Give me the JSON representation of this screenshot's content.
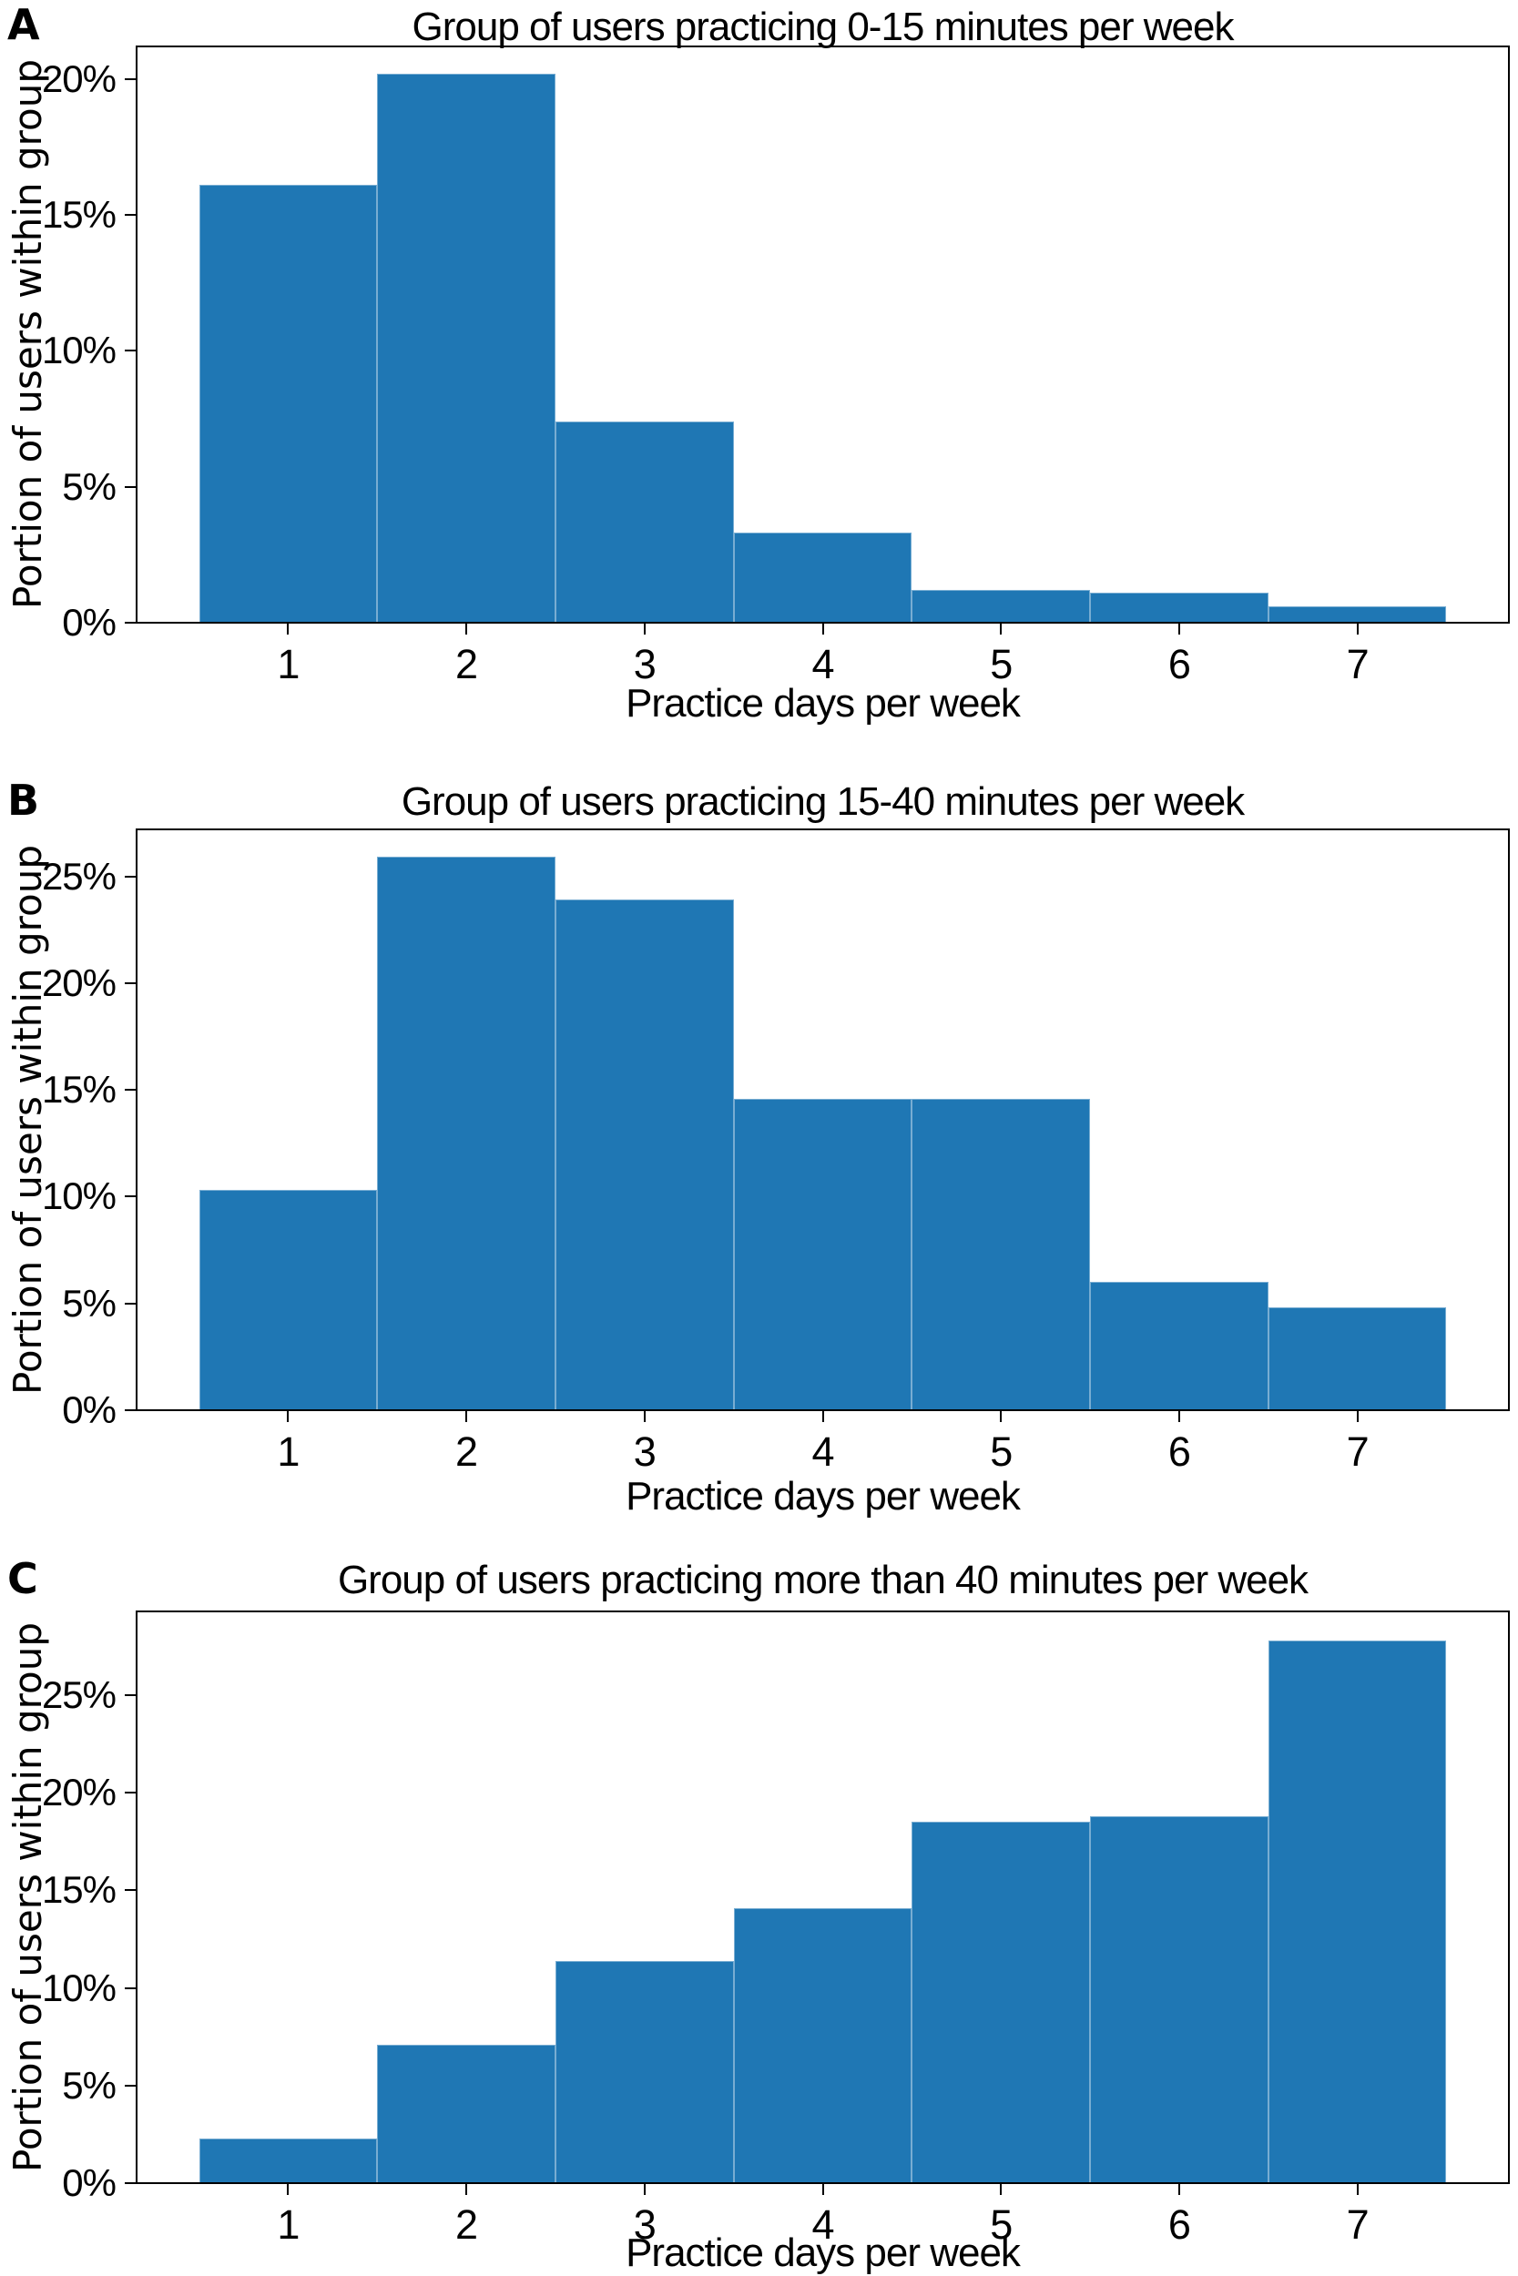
{
  "figure": {
    "background": "#ffffff",
    "bar_color": "#1f77b4",
    "axis_color": "#000000",
    "shared_ylabel": "Portion of users within group",
    "shared_xlabel": "Practice days per week"
  },
  "chart_data": [
    {
      "type": "bar",
      "panel_letter": "A",
      "title": "Group of users practicing 0-15 minutes per week",
      "xlabel": "Practice days per week",
      "ylabel": "Portion of users within group",
      "categories": [
        1,
        2,
        3,
        4,
        5,
        6,
        7
      ],
      "xtick_labels": [
        "1",
        "2",
        "3",
        "4",
        "5",
        "6",
        "7"
      ],
      "values": [
        16.1,
        20.2,
        7.4,
        3.3,
        1.2,
        1.1,
        0.6
      ],
      "unit": "%",
      "bin_width": 1,
      "xlim": [
        0.15,
        7.85
      ],
      "ylim": [
        0,
        21.2
      ],
      "yticks": [
        0,
        5,
        10,
        15,
        20
      ],
      "ytick_labels": [
        "0%",
        "5%",
        "10%",
        "15%",
        "20%"
      ],
      "grid": false,
      "legend": false
    },
    {
      "type": "bar",
      "panel_letter": "B",
      "title": "Group of users practicing 15-40 minutes per week",
      "xlabel": "Practice days per week",
      "ylabel": "Portion of users within group",
      "categories": [
        1,
        2,
        3,
        4,
        5,
        6,
        7
      ],
      "xtick_labels": [
        "1",
        "2",
        "3",
        "4",
        "5",
        "6",
        "7"
      ],
      "values": [
        10.3,
        25.9,
        23.9,
        14.6,
        14.6,
        6.0,
        4.8
      ],
      "unit": "%",
      "bin_width": 1,
      "xlim": [
        0.15,
        7.85
      ],
      "ylim": [
        0,
        27.2
      ],
      "yticks": [
        0,
        5,
        10,
        15,
        20,
        25
      ],
      "ytick_labels": [
        "0%",
        "5%",
        "10%",
        "15%",
        "20%",
        "25%"
      ],
      "grid": false,
      "legend": false
    },
    {
      "type": "bar",
      "panel_letter": "C",
      "title": "Group of users practicing more than 40 minutes per week",
      "xlabel": "Practice days per week",
      "ylabel": "Portion of users within group",
      "categories": [
        1,
        2,
        3,
        4,
        5,
        6,
        7
      ],
      "xtick_labels": [
        "1",
        "2",
        "3",
        "4",
        "5",
        "6",
        "7"
      ],
      "values": [
        2.3,
        7.1,
        11.4,
        14.1,
        18.5,
        18.8,
        27.8
      ],
      "unit": "%",
      "bin_width": 1,
      "xlim": [
        0.15,
        7.85
      ],
      "ylim": [
        0,
        29.3
      ],
      "yticks": [
        0,
        5,
        10,
        15,
        20,
        25
      ],
      "ytick_labels": [
        "0%",
        "5%",
        "10%",
        "15%",
        "20%",
        "25%"
      ],
      "grid": false,
      "legend": false
    }
  ]
}
